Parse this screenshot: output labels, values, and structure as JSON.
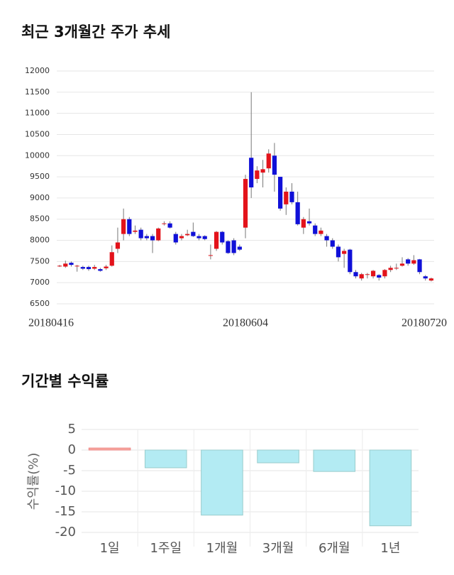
{
  "chart_data": [
    {
      "type": "candlestick",
      "title": "최근 3개월간 주가 추세",
      "categories": [
        "20180416",
        null,
        null,
        null,
        null,
        null,
        null,
        null,
        null,
        null,
        null,
        null,
        null,
        null,
        null,
        null,
        null,
        null,
        null,
        null,
        null,
        null,
        null,
        null,
        null,
        null,
        null,
        null,
        null,
        null,
        null,
        null,
        "20180604",
        null,
        null,
        null,
        null,
        null,
        null,
        null,
        null,
        null,
        null,
        null,
        null,
        null,
        null,
        null,
        null,
        null,
        null,
        null,
        null,
        null,
        null,
        null,
        null,
        null,
        null,
        null,
        null,
        null,
        null,
        null,
        "20180720"
      ],
      "open": [
        7390,
        7380,
        7470,
        7400,
        7370,
        7370,
        7330,
        7320,
        7340,
        7400,
        7800,
        8150,
        8500,
        8200,
        8250,
        8100,
        8100,
        8000,
        8400,
        8400,
        8150,
        8050,
        8120,
        8200,
        8100,
        8100,
        7650,
        7800,
        8200,
        7980,
        8000,
        7850,
        8300,
        9950,
        9450,
        9600,
        9700,
        10000,
        9500,
        8850,
        9150,
        8900,
        8300,
        8450,
        8350,
        8150,
        8100,
        8000,
        7850,
        7680,
        7780,
        7250,
        7100,
        7200,
        7150,
        7180,
        7150,
        7300,
        7350,
        7400,
        7550,
        7450,
        7550,
        7150,
        7050
      ],
      "close": [
        7400,
        7450,
        7420,
        7400,
        7330,
        7320,
        7370,
        7280,
        7380,
        7720,
        7950,
        8500,
        8150,
        8230,
        8050,
        8050,
        8000,
        8280,
        8400,
        8300,
        7950,
        8100,
        8150,
        8100,
        8050,
        8030,
        7650,
        8200,
        7950,
        7700,
        7700,
        7780,
        9450,
        9250,
        9650,
        9680,
        10050,
        9550,
        8750,
        9150,
        8900,
        8380,
        8500,
        8400,
        8150,
        8230,
        8000,
        7850,
        7600,
        7750,
        7250,
        7150,
        7200,
        7200,
        7280,
        7120,
        7300,
        7350,
        7350,
        7450,
        7450,
        7530,
        7250,
        7100,
        7100
      ],
      "high": [
        7420,
        7520,
        7500,
        7420,
        7400,
        7400,
        7420,
        7350,
        7420,
        7880,
        8300,
        8750,
        8550,
        8350,
        8300,
        8150,
        8150,
        8300,
        8450,
        8450,
        8200,
        8150,
        8250,
        8420,
        8150,
        8120,
        7900,
        8220,
        8220,
        8000,
        8050,
        7900,
        9550,
        11500,
        9750,
        9900,
        10150,
        10300,
        9500,
        9250,
        9350,
        9150,
        8550,
        8750,
        8400,
        8300,
        8150,
        8050,
        7900,
        7800,
        7800,
        7300,
        7230,
        7230,
        7300,
        7200,
        7320,
        7400,
        7450,
        7600,
        7580,
        7650,
        7560,
        7180,
        7120
      ],
      "low": [
        7370,
        7350,
        7380,
        7260,
        7300,
        7280,
        7300,
        7260,
        7300,
        7380,
        7700,
        8000,
        8100,
        8150,
        8000,
        8000,
        7700,
        7980,
        8350,
        8280,
        7900,
        8000,
        8100,
        8080,
        8000,
        8000,
        7550,
        7750,
        7900,
        7680,
        7650,
        7750,
        8050,
        9000,
        9350,
        9250,
        9600,
        9150,
        8700,
        8600,
        8850,
        8350,
        8150,
        8350,
        8100,
        8100,
        7850,
        7800,
        7500,
        7350,
        7200,
        7100,
        7050,
        7100,
        7100,
        7050,
        7100,
        7250,
        7300,
        7380,
        7400,
        7420,
        7200,
        7050,
        7030
      ],
      "up_color": "#e3131b",
      "down_color": "#1010d8",
      "ylim": [
        6500,
        12000
      ],
      "yticks": [
        6500,
        7000,
        7500,
        8000,
        8500,
        9000,
        9500,
        10000,
        10500,
        11000,
        11500,
        12000
      ],
      "grid": true
    },
    {
      "type": "bar",
      "title": "기간별 수익률",
      "ylabel": "수익률(%)",
      "categories": [
        "1일",
        "1주일",
        "1개월",
        "3개월",
        "6개월",
        "1년"
      ],
      "values": [
        0.5,
        -4.3,
        -15.8,
        -3.1,
        -5.2,
        -18.4
      ],
      "positive_color": "#f7a9a0",
      "negative_color": "#b3ebf3",
      "ylim": [
        -20,
        5
      ],
      "yticks": [
        -20,
        -15,
        -10,
        -5,
        0,
        5
      ],
      "grid": true
    }
  ]
}
